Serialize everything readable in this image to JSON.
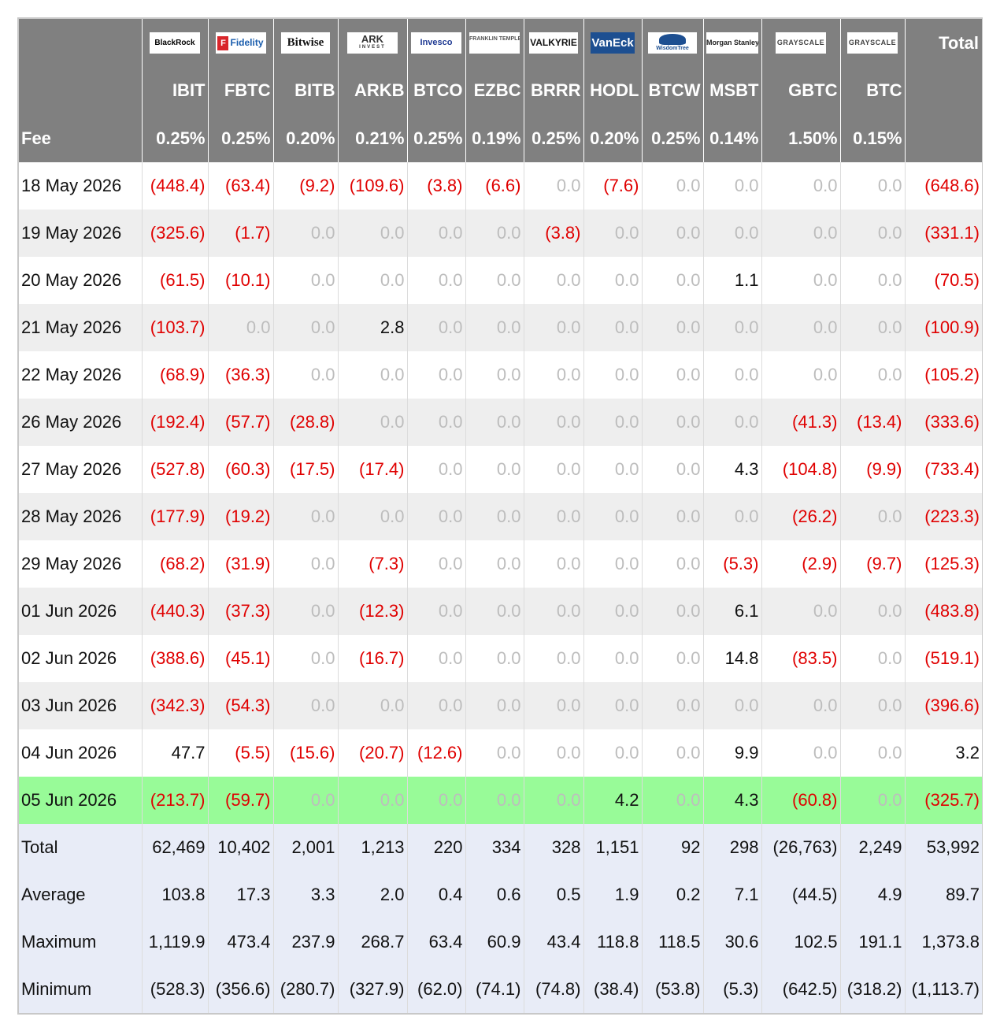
{
  "header": {
    "issuers": [
      {
        "name": "BlackRock",
        "icon": "blackrock-logo"
      },
      {
        "name": "Fidelity",
        "sub": "F",
        "icon": "fidelity-logo"
      },
      {
        "name": "Bitwise",
        "icon": "bitwise-logo"
      },
      {
        "name": "ARK",
        "sub": "INVEST",
        "icon": "ark-invest-logo"
      },
      {
        "name": "Invesco",
        "icon": "invesco-logo"
      },
      {
        "name": "FRANKLIN TEMPLETON",
        "icon": "franklin-templeton-logo"
      },
      {
        "name": "VALKYRIE",
        "icon": "valkyrie-logo"
      },
      {
        "name": "VanEck",
        "icon": "vaneck-logo"
      },
      {
        "name": "WisdomTree",
        "icon": "wisdomtree-logo"
      },
      {
        "name": "Morgan Stanley",
        "icon": "morgan-stanley-logo"
      },
      {
        "name": "GRAYSCALE",
        "icon": "grayscale-logo"
      },
      {
        "name": "GRAYSCALE",
        "icon": "grayscale-logo"
      }
    ],
    "total_label": "Total",
    "tickers": [
      "IBIT",
      "FBTC",
      "BITB",
      "ARKB",
      "BTCO",
      "EZBC",
      "BRRR",
      "HODL",
      "BTCW",
      "MSBT",
      "GBTC",
      "BTC"
    ],
    "fee_label": "Fee",
    "fees": [
      "0.25%",
      "0.25%",
      "0.20%",
      "0.21%",
      "0.25%",
      "0.19%",
      "0.25%",
      "0.20%",
      "0.25%",
      "0.14%",
      "1.50%",
      "0.15%"
    ]
  },
  "rows": [
    {
      "date": "18 May 2026",
      "values": [
        "(448.4)",
        "(63.4)",
        "(9.2)",
        "(109.6)",
        "(3.8)",
        "(6.6)",
        "0.0",
        "(7.6)",
        "0.0",
        "0.0",
        "0.0",
        "0.0"
      ],
      "total": "(648.6)"
    },
    {
      "date": "19 May 2026",
      "values": [
        "(325.6)",
        "(1.7)",
        "0.0",
        "0.0",
        "0.0",
        "0.0",
        "(3.8)",
        "0.0",
        "0.0",
        "0.0",
        "0.0",
        "0.0"
      ],
      "total": "(331.1)"
    },
    {
      "date": "20 May 2026",
      "values": [
        "(61.5)",
        "(10.1)",
        "0.0",
        "0.0",
        "0.0",
        "0.0",
        "0.0",
        "0.0",
        "0.0",
        "1.1",
        "0.0",
        "0.0"
      ],
      "total": "(70.5)"
    },
    {
      "date": "21 May 2026",
      "values": [
        "(103.7)",
        "0.0",
        "0.0",
        "2.8",
        "0.0",
        "0.0",
        "0.0",
        "0.0",
        "0.0",
        "0.0",
        "0.0",
        "0.0"
      ],
      "total": "(100.9)"
    },
    {
      "date": "22 May 2026",
      "values": [
        "(68.9)",
        "(36.3)",
        "0.0",
        "0.0",
        "0.0",
        "0.0",
        "0.0",
        "0.0",
        "0.0",
        "0.0",
        "0.0",
        "0.0"
      ],
      "total": "(105.2)"
    },
    {
      "date": "26 May 2026",
      "values": [
        "(192.4)",
        "(57.7)",
        "(28.8)",
        "0.0",
        "0.0",
        "0.0",
        "0.0",
        "0.0",
        "0.0",
        "0.0",
        "(41.3)",
        "(13.4)"
      ],
      "total": "(333.6)"
    },
    {
      "date": "27 May 2026",
      "values": [
        "(527.8)",
        "(60.3)",
        "(17.5)",
        "(17.4)",
        "0.0",
        "0.0",
        "0.0",
        "0.0",
        "0.0",
        "4.3",
        "(104.8)",
        "(9.9)"
      ],
      "total": "(733.4)"
    },
    {
      "date": "28 May 2026",
      "values": [
        "(177.9)",
        "(19.2)",
        "0.0",
        "0.0",
        "0.0",
        "0.0",
        "0.0",
        "0.0",
        "0.0",
        "0.0",
        "(26.2)",
        "0.0"
      ],
      "total": "(223.3)"
    },
    {
      "date": "29 May 2026",
      "values": [
        "(68.2)",
        "(31.9)",
        "0.0",
        "(7.3)",
        "0.0",
        "0.0",
        "0.0",
        "0.0",
        "0.0",
        "(5.3)",
        "(2.9)",
        "(9.7)"
      ],
      "total": "(125.3)"
    },
    {
      "date": "01 Jun 2026",
      "values": [
        "(440.3)",
        "(37.3)",
        "0.0",
        "(12.3)",
        "0.0",
        "0.0",
        "0.0",
        "0.0",
        "0.0",
        "6.1",
        "0.0",
        "0.0"
      ],
      "total": "(483.8)"
    },
    {
      "date": "02 Jun 2026",
      "values": [
        "(388.6)",
        "(45.1)",
        "0.0",
        "(16.7)",
        "0.0",
        "0.0",
        "0.0",
        "0.0",
        "0.0",
        "14.8",
        "(83.5)",
        "0.0"
      ],
      "total": "(519.1)"
    },
    {
      "date": "03 Jun 2026",
      "values": [
        "(342.3)",
        "(54.3)",
        "0.0",
        "0.0",
        "0.0",
        "0.0",
        "0.0",
        "0.0",
        "0.0",
        "0.0",
        "0.0",
        "0.0"
      ],
      "total": "(396.6)"
    },
    {
      "date": "04 Jun 2026",
      "values": [
        "47.7",
        "(5.5)",
        "(15.6)",
        "(20.7)",
        "(12.6)",
        "0.0",
        "0.0",
        "0.0",
        "0.0",
        "9.9",
        "0.0",
        "0.0"
      ],
      "total": "3.2"
    },
    {
      "date": "05 Jun 2026",
      "values": [
        "(213.7)",
        "(59.7)",
        "0.0",
        "0.0",
        "0.0",
        "0.0",
        "0.0",
        "4.2",
        "0.0",
        "4.3",
        "(60.8)",
        "0.0"
      ],
      "total": "(325.7)",
      "highlight": true
    }
  ],
  "stats": [
    {
      "label": "Total",
      "values": [
        "62,469",
        "10,402",
        "2,001",
        "1,213",
        "220",
        "334",
        "328",
        "1,151",
        "92",
        "298",
        "(26,763)",
        "2,249"
      ],
      "total": "53,992"
    },
    {
      "label": "Average",
      "values": [
        "103.8",
        "17.3",
        "3.3",
        "2.0",
        "0.4",
        "0.6",
        "0.5",
        "1.9",
        "0.2",
        "7.1",
        "(44.5)",
        "4.9"
      ],
      "total": "89.7"
    },
    {
      "label": "Maximum",
      "values": [
        "1,119.9",
        "473.4",
        "237.9",
        "268.7",
        "63.4",
        "60.9",
        "43.4",
        "118.8",
        "118.5",
        "30.6",
        "102.5",
        "191.1"
      ],
      "total": "1,373.8"
    },
    {
      "label": "Minimum",
      "values": [
        "(528.3)",
        "(356.6)",
        "(280.7)",
        "(327.9)",
        "(62.0)",
        "(74.1)",
        "(74.8)",
        "(38.4)",
        "(53.8)",
        "(5.3)",
        "(642.5)",
        "(318.2)"
      ],
      "total": "(1,113.7)"
    }
  ],
  "colors": {
    "header_bg": "#808080",
    "negative": "#e00000",
    "zero": "#bdbdbd",
    "highlight_row": "#98fb98",
    "stats_bg": "#e8ecf7"
  }
}
